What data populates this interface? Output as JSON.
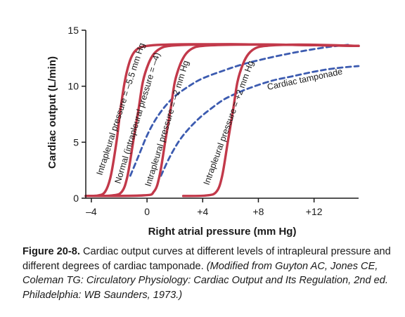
{
  "chart_data": {
    "type": "line",
    "xlabel": "Right atrial pressure (mm Hg)",
    "ylabel": "Cardiac output (L/min)",
    "xlim": [
      -4.4,
      15.2
    ],
    "ylim": [
      0,
      15
    ],
    "x_ticks": [
      -4,
      0,
      4,
      8,
      12
    ],
    "x_tick_labels": [
      "–4",
      "0",
      "+4",
      "+8",
      "+12"
    ],
    "y_ticks": [
      0,
      5,
      10,
      15
    ],
    "y_tick_labels": [
      "0",
      "5",
      "10",
      "15"
    ],
    "grid": false,
    "legend": "none",
    "colors": {
      "solid": "#c2394a",
      "dashed": "#3c5bb0",
      "axis": "#1a1a1a"
    },
    "series": [
      {
        "name": "Intrapleural pressure = –5.5 mm Hg",
        "style": "solid",
        "x": [
          -4.4,
          -3.5,
          -3.0,
          -2.6,
          -2.2,
          -1.9,
          -1.6,
          -1.3,
          -1.0,
          -0.6,
          0.0,
          1.0,
          3.0,
          6.0,
          10.0,
          15.2
        ],
        "y": [
          0.2,
          0.25,
          0.6,
          2.0,
          5.0,
          8.0,
          10.4,
          12.0,
          12.9,
          13.4,
          13.6,
          13.7,
          13.75,
          13.75,
          13.7,
          13.6
        ]
      },
      {
        "name": "Normal (intrapleural pressure = –4)",
        "style": "solid",
        "x": [
          -4.4,
          -2.5,
          -1.8,
          -1.4,
          -1.0,
          -0.6,
          -0.3,
          0.1,
          0.5,
          1.0,
          1.6,
          3.0,
          6.0,
          10.0,
          15.2
        ],
        "y": [
          0.2,
          0.25,
          0.6,
          2.0,
          5.0,
          8.0,
          10.4,
          12.0,
          12.9,
          13.4,
          13.6,
          13.7,
          13.75,
          13.7,
          13.6
        ]
      },
      {
        "name": "Intrapleural pressure = –2 mm Hg",
        "style": "solid",
        "x": [
          -4.4,
          -0.3,
          0.5,
          0.9,
          1.3,
          1.7,
          2.0,
          2.4,
          2.8,
          3.3,
          4.0,
          6.0,
          10.0,
          15.2
        ],
        "y": [
          0.2,
          0.25,
          0.6,
          2.0,
          5.0,
          8.0,
          10.4,
          12.0,
          12.9,
          13.4,
          13.6,
          13.7,
          13.7,
          13.6
        ]
      },
      {
        "name": "Intrapleural pressure = +2 mm Hg",
        "style": "solid",
        "x": [
          2.6,
          4.3,
          5.0,
          5.4,
          5.8,
          6.2,
          6.5,
          6.9,
          7.3,
          7.8,
          8.5,
          10.0,
          12.0,
          15.2
        ],
        "y": [
          0.2,
          0.25,
          0.6,
          2.0,
          5.0,
          8.0,
          10.4,
          12.0,
          12.9,
          13.4,
          13.6,
          13.7,
          13.7,
          13.6
        ]
      },
      {
        "name": "",
        "style": "dashed",
        "x": [
          -1.2,
          -0.6,
          0.0,
          0.6,
          1.3,
          2.0,
          3.0,
          4.0,
          5.5,
          7.0,
          9.0,
          11.0,
          13.0,
          14.5
        ],
        "y": [
          2.0,
          3.8,
          5.6,
          7.0,
          8.2,
          9.1,
          10.0,
          10.7,
          11.4,
          12.0,
          12.6,
          13.1,
          13.5,
          13.7
        ]
      },
      {
        "name": "Cardiac tamponade",
        "style": "dashed",
        "x": [
          1.0,
          1.6,
          2.3,
          3.0,
          3.8,
          4.6,
          5.5,
          6.5,
          7.5,
          9.0,
          10.5,
          12.0,
          13.5,
          15.2
        ],
        "y": [
          2.0,
          3.6,
          5.1,
          6.2,
          7.2,
          8.0,
          8.8,
          9.4,
          9.9,
          10.5,
          10.9,
          11.3,
          11.6,
          11.8
        ]
      }
    ]
  },
  "caption": {
    "figure_number": "Figure 20-8.",
    "text": " Cardiac output curves at different levels of intrapleural pressure and different degrees of cardiac tamponade. ",
    "credit": "(Modified from Guyton AC, Jones CE, Coleman TG: Circulatory Physiology: Cardiac Output and Its Regulation, 2nd ed. Philadelphia: WB Saunders, 1973.)"
  }
}
